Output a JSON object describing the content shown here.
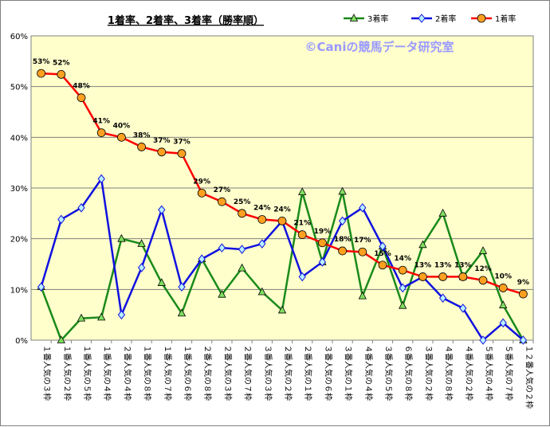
{
  "chart_data": {
    "type": "line",
    "title": "1着率、2着率、3着率（勝率順）",
    "watermark": "©Caniの競馬データ研究室",
    "ylim": [
      0,
      60
    ],
    "yticks": [
      "0%",
      "10%",
      "20%",
      "30%",
      "40%",
      "50%",
      "60%"
    ],
    "grid": true,
    "legend_position": "top-right",
    "background_color": "#ffffcc",
    "categories": [
      "１番人気の３枠",
      "１番人気の２枠",
      "１番人気の５枠",
      "１番人気の４枠",
      "２番人気の４枠",
      "１番人気の８枠",
      "１番人気の７枠",
      "１番人気の６枠",
      "２番人気の８枠",
      "２番人気の３枠",
      "２番人気の７枠",
      "３番人気の３枠",
      "２番人気の２枠",
      "２番人気の１枠",
      "３番人気の６枠",
      "３番人気の１枠",
      "４番人気の４枠",
      "３番人気の５枠",
      "６番人気の８枠",
      "３番人気の２枠",
      "４番人気の８枠",
      "４番人気の２枠",
      "５番人気の４枠",
      "５番人気の７枠",
      "１２番人気の２枠"
    ],
    "series": [
      {
        "name": "3着率",
        "color": "#1a8a1a",
        "marker": "triangle",
        "values": [
          10.5,
          0,
          4.3,
          4.5,
          20,
          19,
          11.3,
          5.3,
          16,
          9,
          14.2,
          9.5,
          5.9,
          29.2,
          15.4,
          29.3,
          8.7,
          18.5,
          6.8,
          18.8,
          25,
          12.5,
          17.6,
          6.9,
          0
        ]
      },
      {
        "name": "2着率",
        "color": "#1010e0",
        "marker": "diamond",
        "values": [
          10.5,
          23.8,
          26.1,
          31.8,
          5,
          14.3,
          25.7,
          10.5,
          16,
          18.2,
          17.9,
          19,
          23.5,
          12.5,
          15.4,
          23.5,
          26.1,
          18.5,
          10.3,
          12.5,
          8.3,
          6.3,
          0,
          3.4,
          0
        ]
      },
      {
        "name": "1着率",
        "color": "#ff0000",
        "marker": "circle",
        "values": [
          52.6,
          52.4,
          47.8,
          40.9,
          40,
          38.1,
          37.1,
          36.8,
          29,
          27.3,
          25,
          23.8,
          23.5,
          20.8,
          19.2,
          17.6,
          17.4,
          14.8,
          13.8,
          12.5,
          12.5,
          12.5,
          11.8,
          10.3,
          9.1
        ]
      }
    ],
    "data_labels": [
      "53%",
      "52%",
      "48%",
      "41%",
      "40%",
      "38%",
      "37%",
      "37%",
      "29%",
      "27%",
      "25%",
      "24%",
      "24%",
      "21%",
      "19%",
      "18%",
      "17%",
      "15%",
      "14%",
      "13%",
      "13%",
      "13%",
      "12%",
      "10%",
      "9%"
    ]
  }
}
